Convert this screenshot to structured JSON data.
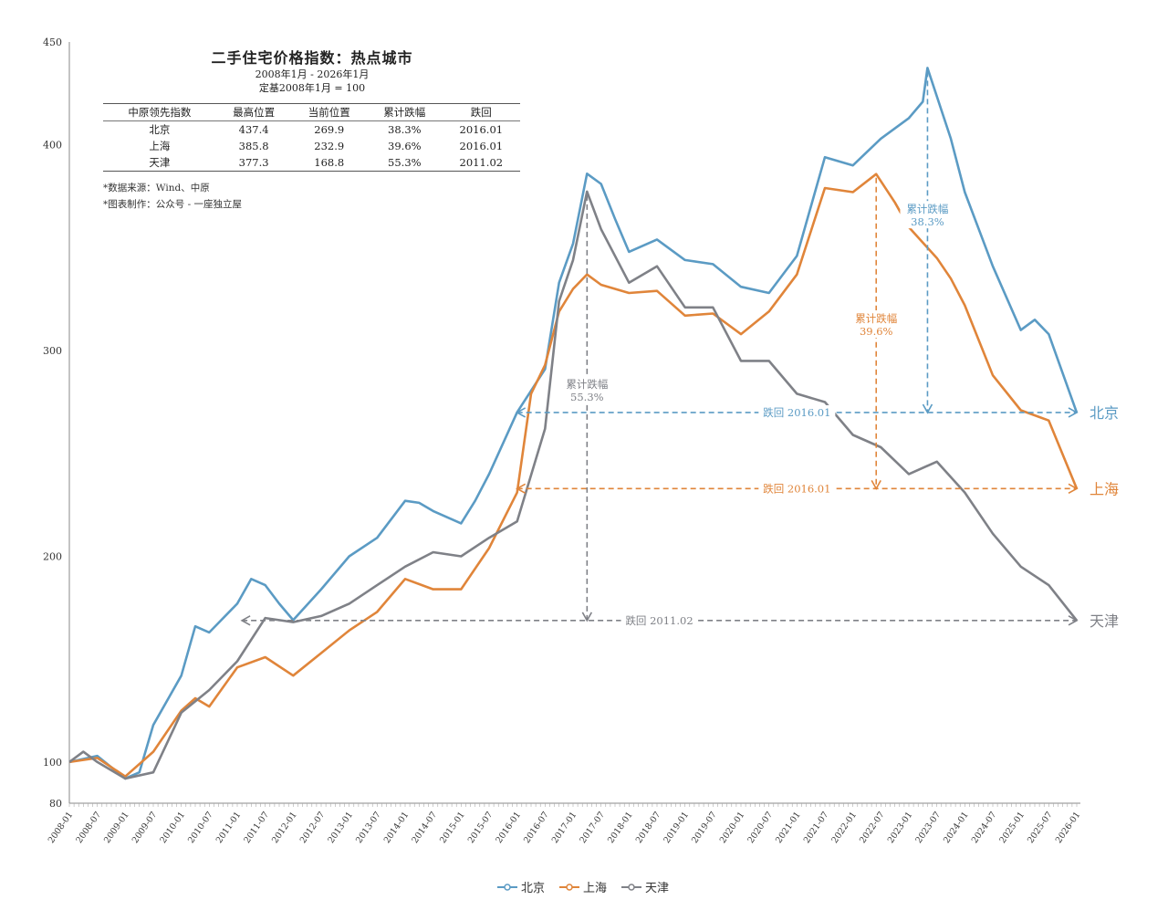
{
  "chart_data": {
    "type": "line",
    "title": "二手住宅价格指数：热点城市",
    "subtitle": [
      "2008年1月 - 2026年1月",
      "定基2008年1月 = 100"
    ],
    "ylim": [
      80,
      450
    ],
    "yticks": [
      80,
      100,
      200,
      300,
      400,
      450
    ],
    "xrange": [
      "2008-01",
      "2026-01"
    ],
    "xticks": [
      "2008-01",
      "2008-07",
      "2009-01",
      "2009-07",
      "2010-01",
      "2010-07",
      "2011-01",
      "2011-07",
      "2012-01",
      "2012-07",
      "2013-01",
      "2013-07",
      "2014-01",
      "2014-07",
      "2015-01",
      "2015-07",
      "2016-01",
      "2016-07",
      "2017-01",
      "2017-07",
      "2018-01",
      "2018-07",
      "2019-01",
      "2019-07",
      "2020-01",
      "2020-07",
      "2021-01",
      "2021-07",
      "2022-01",
      "2022-07",
      "2023-01",
      "2023-07",
      "2024-01",
      "2024-07",
      "2025-01",
      "2025-07",
      "2026-01"
    ],
    "grid": false,
    "legend_position": "bottom",
    "series": [
      {
        "name": "北京",
        "color": "#5b9bc4",
        "x": [
          "2008-01",
          "2008-07",
          "2009-01",
          "2009-04",
          "2009-07",
          "2010-01",
          "2010-04",
          "2010-07",
          "2011-01",
          "2011-04",
          "2011-07",
          "2011-10",
          "2012-01",
          "2012-07",
          "2013-01",
          "2013-07",
          "2014-01",
          "2014-04",
          "2014-07",
          "2015-01",
          "2015-04",
          "2015-07",
          "2016-01",
          "2016-07",
          "2016-10",
          "2017-01",
          "2017-04",
          "2017-07",
          "2017-10",
          "2018-01",
          "2018-07",
          "2019-01",
          "2019-07",
          "2020-01",
          "2020-07",
          "2021-01",
          "2021-07",
          "2022-01",
          "2022-07",
          "2023-01",
          "2023-04",
          "2023-05",
          "2023-10",
          "2024-01",
          "2024-07",
          "2025-01",
          "2025-04",
          "2025-07",
          "2026-01"
        ],
        "values": [
          100,
          103,
          92,
          95,
          118,
          142,
          166,
          163,
          177,
          189,
          186,
          177,
          169,
          184,
          200,
          209,
          227,
          226,
          222,
          216,
          227,
          240,
          270,
          291,
          333,
          352,
          386,
          381,
          364,
          348,
          354,
          344,
          342,
          331,
          328,
          346,
          394,
          390,
          403,
          413,
          421,
          437.4,
          403,
          377,
          341,
          310,
          315,
          308,
          269.9
        ]
      },
      {
        "name": "上海",
        "color": "#e0853a",
        "x": [
          "2008-01",
          "2008-07",
          "2009-01",
          "2009-07",
          "2010-01",
          "2010-04",
          "2010-07",
          "2011-01",
          "2011-07",
          "2012-01",
          "2012-07",
          "2013-01",
          "2013-07",
          "2014-01",
          "2014-07",
          "2015-01",
          "2015-07",
          "2016-01",
          "2016-04",
          "2016-07",
          "2016-10",
          "2017-01",
          "2017-04",
          "2017-07",
          "2018-01",
          "2018-07",
          "2019-01",
          "2019-07",
          "2020-01",
          "2020-07",
          "2021-01",
          "2021-07",
          "2022-01",
          "2022-06",
          "2022-10",
          "2023-01",
          "2023-07",
          "2023-10",
          "2024-01",
          "2024-07",
          "2025-01",
          "2025-07",
          "2026-01"
        ],
        "values": [
          100,
          102,
          93,
          105,
          125,
          131,
          127,
          146,
          151,
          142,
          153,
          164,
          173,
          189,
          184,
          184,
          204,
          231,
          279,
          293,
          319,
          330,
          337,
          332,
          328,
          329,
          317,
          318,
          308,
          319,
          337,
          379,
          377,
          385.8,
          372,
          360,
          345,
          335,
          322,
          288,
          271,
          266,
          232.9
        ]
      },
      {
        "name": "天津",
        "color": "#7f8187",
        "x": [
          "2008-01",
          "2008-04",
          "2008-07",
          "2009-01",
          "2009-07",
          "2010-01",
          "2010-07",
          "2011-01",
          "2011-07",
          "2012-01",
          "2012-07",
          "2013-01",
          "2013-07",
          "2014-01",
          "2014-07",
          "2015-01",
          "2015-07",
          "2016-01",
          "2016-07",
          "2016-10",
          "2017-01",
          "2017-04",
          "2017-07",
          "2018-01",
          "2018-07",
          "2019-01",
          "2019-07",
          "2020-01",
          "2020-07",
          "2021-01",
          "2021-07",
          "2022-01",
          "2022-07",
          "2023-01",
          "2023-07",
          "2024-01",
          "2024-07",
          "2025-01",
          "2025-07",
          "2026-01"
        ],
        "values": [
          100,
          105,
          100,
          92,
          95,
          124,
          135,
          149,
          170,
          168,
          171,
          177,
          186,
          195,
          202,
          200,
          209,
          217,
          262,
          324,
          344,
          377.3,
          359,
          333,
          341,
          321,
          321,
          295,
          295,
          279,
          275,
          259,
          253,
          240,
          246,
          231,
          211,
          195,
          186,
          168.8
        ]
      }
    ],
    "annotations": [
      {
        "series": "北京",
        "drop_label": "累计跌幅",
        "drop_value": "38.3%",
        "peak_date": "2023-05",
        "peak": 437.4,
        "current": 269.9,
        "back_label": "跌回 2016.01",
        "back_from": "2016-01",
        "end_label": "北京"
      },
      {
        "series": "上海",
        "drop_label": "累计跌幅",
        "drop_value": "39.6%",
        "peak_date": "2022-06",
        "peak": 385.8,
        "current": 232.9,
        "back_label": "跌回 2016.01",
        "back_from": "2016-01",
        "end_label": "上海"
      },
      {
        "series": "天津",
        "drop_label": "累计跌幅",
        "drop_value": "55.3%",
        "peak_date": "2017-04",
        "peak": 377.3,
        "current": 168.8,
        "back_label": "跌回 2011.02",
        "back_from": "2011-02",
        "end_label": "天津"
      }
    ]
  },
  "table": {
    "headers": [
      "中原领先指数",
      "最高位置",
      "当前位置",
      "累计跌幅",
      "跌回"
    ],
    "rows": [
      [
        "北京",
        "437.4",
        "269.9",
        "38.3%",
        "2016.01"
      ],
      [
        "上海",
        "385.8",
        "232.9",
        "39.6%",
        "2016.01"
      ],
      [
        "天津",
        "377.3",
        "168.8",
        "55.3%",
        "2011.02"
      ]
    ]
  },
  "notes": [
    "*数据来源：Wind、中原",
    "*图表制作：公众号 - 一座独立屋"
  ]
}
